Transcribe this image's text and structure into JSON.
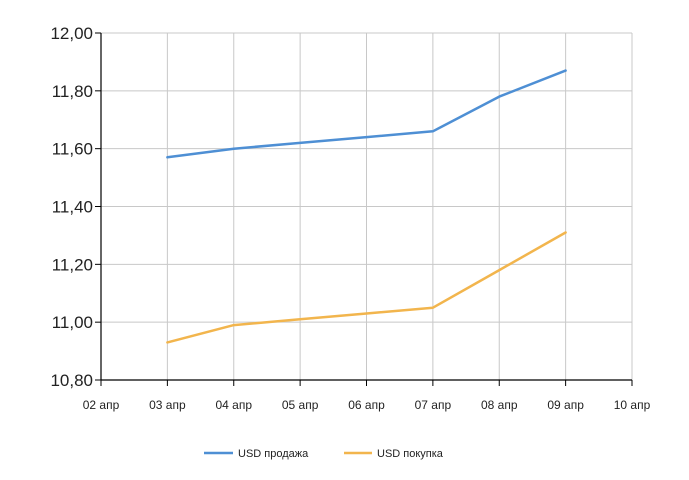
{
  "chart_data": {
    "type": "line",
    "title": "",
    "xlabel": "",
    "ylabel": "",
    "categories": [
      "02 апр",
      "03 апр",
      "04 апр",
      "05 апр",
      "06 апр",
      "07 апр",
      "08 апр",
      "09 апр",
      "10 апр"
    ],
    "y_ticks": [
      "10,80",
      "11,00",
      "11,20",
      "11,40",
      "11,60",
      "11,80",
      "12,00"
    ],
    "y_tick_values": [
      10.8,
      11.0,
      11.2,
      11.4,
      11.6,
      11.8,
      12.0
    ],
    "ylim": [
      10.8,
      12.0
    ],
    "grid": true,
    "legend_position": "bottom-center",
    "series": [
      {
        "name": "USD продажа",
        "color": "#4e8fd4",
        "values": [
          null,
          11.57,
          11.6,
          11.62,
          11.64,
          11.66,
          11.78,
          11.87,
          null
        ]
      },
      {
        "name": "USD покупка",
        "color": "#f2b54d",
        "values": [
          null,
          10.93,
          10.99,
          11.01,
          11.03,
          11.05,
          11.18,
          11.31,
          null
        ]
      }
    ]
  }
}
